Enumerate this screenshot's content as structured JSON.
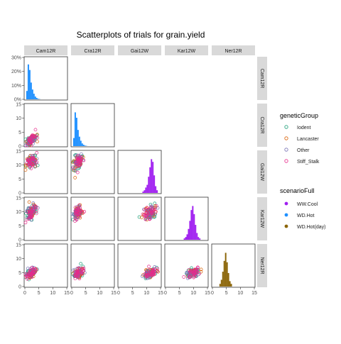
{
  "chart_data": {
    "type": "scatter-matrix",
    "title": "Scatterplots of trials for grain.yield",
    "trials": [
      "Cam12R",
      "Cra12R",
      "Gai12W",
      "Kar12W",
      "Ner12R"
    ],
    "scatter_axis": {
      "range": [
        0,
        15
      ],
      "ticks": [
        0,
        5,
        10,
        15
      ],
      "tick_labels": [
        "0",
        "5",
        "10",
        "15"
      ]
    },
    "first_histogram_axis": {
      "range": [
        0,
        0.3
      ],
      "ticks": [
        0,
        0.1,
        0.2,
        0.3
      ],
      "tick_labels": [
        "0%",
        "10%",
        "20%",
        "30%"
      ]
    },
    "diagonal_histograms": [
      {
        "trial": "Cam12R",
        "scenario": "WD.Hot",
        "bin_width": 0.5,
        "bin_starts": [
          0.5,
          1.0,
          1.5,
          2.0,
          2.5,
          3.0,
          3.5,
          4.0,
          4.5,
          5.0
        ],
        "heights": [
          0.06,
          0.25,
          0.21,
          0.12,
          0.07,
          0.04,
          0.02,
          0.01,
          0.004,
          0.002
        ]
      },
      {
        "trial": "Cra12R",
        "scenario": "WD.Hot",
        "bin_width": 0.5,
        "bin_starts": [
          0.5,
          1.0,
          1.5,
          2.0,
          2.5,
          3.0,
          3.5,
          4.0,
          4.5,
          5.0
        ],
        "heights": [
          0.06,
          0.25,
          0.21,
          0.12,
          0.07,
          0.04,
          0.02,
          0.01,
          0.004,
          0.002
        ]
      },
      {
        "trial": "Gai12W",
        "scenario": "WW.Cool",
        "bin_width": 0.5,
        "bin_starts": [
          8.5,
          9.0,
          9.5,
          10.0,
          10.5,
          11.0,
          11.5,
          12.0,
          12.5,
          13.0,
          13.5
        ],
        "heights": [
          0.01,
          0.02,
          0.04,
          0.06,
          0.12,
          0.19,
          0.25,
          0.23,
          0.13,
          0.05,
          0.02
        ]
      },
      {
        "trial": "Kar12W",
        "scenario": "WW.Cool",
        "bin_width": 0.5,
        "bin_starts": [
          6.5,
          7.0,
          7.5,
          8.0,
          8.5,
          9.0,
          9.5,
          10.0,
          10.5,
          11.0,
          11.5,
          12.0
        ],
        "heights": [
          0.01,
          0.02,
          0.04,
          0.08,
          0.14,
          0.22,
          0.25,
          0.19,
          0.11,
          0.05,
          0.02,
          0.01
        ]
      },
      {
        "trial": "Ner12R",
        "scenario": "WD.Hot(day)",
        "bin_width": 0.5,
        "bin_starts": [
          2.5,
          3.0,
          3.5,
          4.0,
          4.5,
          5.0,
          5.5,
          6.0,
          6.5
        ],
        "heights": [
          0.02,
          0.05,
          0.11,
          0.19,
          0.25,
          0.18,
          0.1,
          0.04,
          0.02
        ]
      }
    ],
    "scatter_panels": [
      {
        "x": "Cam12R",
        "y": "Cra12R",
        "x_center": 2.3,
        "y_center": 2.2,
        "x_spread": 0.9,
        "y_spread": 1.0,
        "correlation": 0.5,
        "points_per_group": 28
      },
      {
        "x": "Cam12R",
        "y": "Gai12W",
        "x_center": 2.3,
        "y_center": 11.3,
        "x_spread": 0.9,
        "y_spread": 1.2,
        "correlation": 0.3,
        "points_per_group": 28
      },
      {
        "x": "Cra12R",
        "y": "Gai12W",
        "x_center": 2.3,
        "y_center": 11.3,
        "x_spread": 0.9,
        "y_spread": 1.2,
        "correlation": 0.3,
        "points_per_group": 28
      },
      {
        "x": "Cam12R",
        "y": "Kar12W",
        "x_center": 2.3,
        "y_center": 9.8,
        "x_spread": 0.9,
        "y_spread": 1.3,
        "correlation": 0.4,
        "points_per_group": 28
      },
      {
        "x": "Cra12R",
        "y": "Kar12W",
        "x_center": 2.3,
        "y_center": 9.8,
        "x_spread": 0.9,
        "y_spread": 1.3,
        "correlation": 0.4,
        "points_per_group": 28
      },
      {
        "x": "Gai12W",
        "y": "Kar12W",
        "x_center": 11.3,
        "y_center": 9.8,
        "x_spread": 1.2,
        "y_spread": 1.3,
        "correlation": 0.4,
        "points_per_group": 28
      },
      {
        "x": "Cam12R",
        "y": "Ner12R",
        "x_center": 2.3,
        "y_center": 4.8,
        "x_spread": 0.9,
        "y_spread": 0.9,
        "correlation": 0.4,
        "points_per_group": 28
      },
      {
        "x": "Cra12R",
        "y": "Ner12R",
        "x_center": 2.3,
        "y_center": 4.8,
        "x_spread": 0.9,
        "y_spread": 0.9,
        "correlation": 0.4,
        "points_per_group": 28
      },
      {
        "x": "Gai12W",
        "y": "Ner12R",
        "x_center": 11.3,
        "y_center": 4.8,
        "x_spread": 1.2,
        "y_spread": 0.9,
        "correlation": 0.5,
        "points_per_group": 28
      },
      {
        "x": "Kar12W",
        "y": "Ner12R",
        "x_center": 9.8,
        "y_center": 4.8,
        "x_spread": 1.3,
        "y_spread": 0.9,
        "correlation": 0.5,
        "points_per_group": 28
      }
    ],
    "legend_genetic": {
      "title": "geneticGroup",
      "items": [
        {
          "label": "Iodent",
          "color": "#1b9e77"
        },
        {
          "label": "Lancaster",
          "color": "#d95f02"
        },
        {
          "label": "Other",
          "color": "#7570b3"
        },
        {
          "label": "Stiff_Stalk",
          "color": "#e7298a"
        }
      ]
    },
    "legend_scenario": {
      "title": "scenarioFull",
      "items": [
        {
          "label": "WW.Cool",
          "color": "#a020f0"
        },
        {
          "label": "WD.Hot",
          "color": "#1e90ff"
        },
        {
          "label": "WD.Hot(day)",
          "color": "#8b6508"
        }
      ]
    },
    "grid": false,
    "legend_position": "right"
  }
}
